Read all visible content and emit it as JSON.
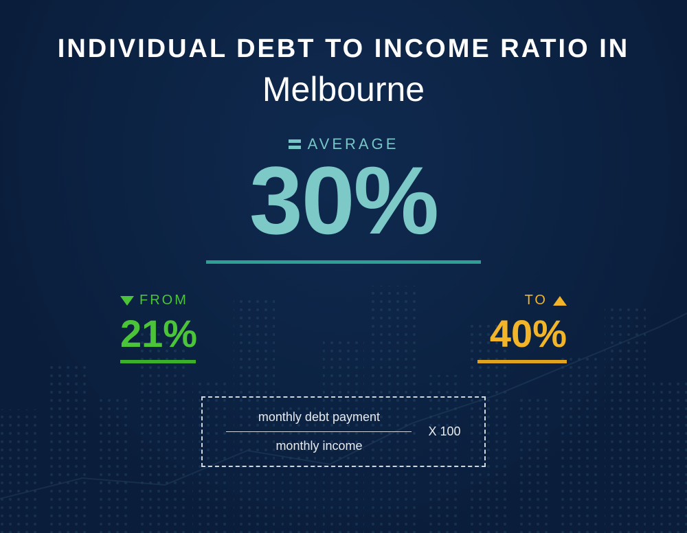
{
  "type": "infographic",
  "background": {
    "gradient_from": "#0f2a4f",
    "gradient_to": "#0a1d3a",
    "dot_color": "#2a5a7a"
  },
  "title": {
    "line1": "INDIVIDUAL  DEBT  TO  INCOME RATIO  IN",
    "line2": "Melbourne",
    "line1_color": "#ffffff",
    "line2_color": "#ffffff",
    "line1_fontsize": 38,
    "line2_fontsize": 50
  },
  "average": {
    "label": "AVERAGE",
    "label_color": "#76c6c6",
    "label_fontsize": 22,
    "value": "30%",
    "value_color": "#7cc9c7",
    "value_fontsize": 140,
    "underline_color": "#2f9e93",
    "equals_icon_color": "#76c6c6"
  },
  "range": {
    "from": {
      "label": "FROM",
      "label_color": "#4cc43a",
      "label_fontsize": 20,
      "value": "21%",
      "value_color": "#4cc43a",
      "value_fontsize": 56,
      "underline_color": "#3bb02a",
      "underline_width": 110
    },
    "to": {
      "label": "TO",
      "label_color": "#f2b429",
      "label_fontsize": 20,
      "value": "40%",
      "value_color": "#f2b429",
      "value_fontsize": 56,
      "underline_color": "#e0a320",
      "underline_width": 130
    }
  },
  "formula": {
    "numerator": "monthly debt payment",
    "denominator": "monthly income",
    "multiplier": "X 100",
    "text_color": "#e8ebee",
    "fontsize": 18,
    "border_color": "#cfd6dd",
    "fraction_line_width": 270
  }
}
